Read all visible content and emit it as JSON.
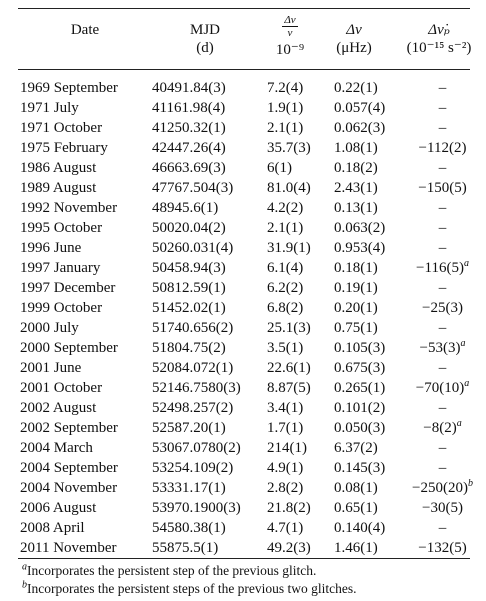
{
  "header": {
    "date": "Date",
    "mjd": "MJD",
    "mjd_unit": "(d)",
    "rel_num": "Δν",
    "rel_den": "ν",
    "rel_unit": "10⁻⁹",
    "dnu": "Δν",
    "dnu_unit": "(μHz)",
    "dnud": "Δν̇ₚ",
    "dnud_unit": "(10⁻¹⁵ s⁻²)"
  },
  "rows": [
    {
      "date": "1969 September",
      "mjd": "40491.84(3)",
      "rel": "7.2(4)",
      "dnu": "0.22(1)",
      "dnud": "–"
    },
    {
      "date": "1971 July",
      "mjd": "41161.98(4)",
      "rel": "1.9(1)",
      "dnu": "0.057(4)",
      "dnud": "–"
    },
    {
      "date": "1971 October",
      "mjd": "41250.32(1)",
      "rel": "2.1(1)",
      "dnu": "0.062(3)",
      "dnud": "–"
    },
    {
      "date": "1975 February",
      "mjd": "42447.26(4)",
      "rel": "35.7(3)",
      "dnu": "1.08(1)",
      "dnud": "−112(2)"
    },
    {
      "date": "1986 August",
      "mjd": "46663.69(3)",
      "rel": "6(1)",
      "dnu": "0.18(2)",
      "dnud": "–"
    },
    {
      "date": "1989 August",
      "mjd": "47767.504(3)",
      "rel": "81.0(4)",
      "dnu": "2.43(1)",
      "dnud": "−150(5)"
    },
    {
      "date": "1992 November",
      "mjd": "48945.6(1)",
      "rel": "4.2(2)",
      "dnu": "0.13(1)",
      "dnud": "–"
    },
    {
      "date": "1995 October",
      "mjd": "50020.04(2)",
      "rel": "2.1(1)",
      "dnu": "0.063(2)",
      "dnud": "–"
    },
    {
      "date": "1996 June",
      "mjd": "50260.031(4)",
      "rel": "31.9(1)",
      "dnu": "0.953(4)",
      "dnud": "–"
    },
    {
      "date": "1997 January",
      "mjd": "50458.94(3)",
      "rel": "6.1(4)",
      "dnu": "0.18(1)",
      "dnud": "−116(5)",
      "dnud_mark": "a"
    },
    {
      "date": "1997 December",
      "mjd": "50812.59(1)",
      "rel": "6.2(2)",
      "dnu": "0.19(1)",
      "dnud": "–"
    },
    {
      "date": "1999 October",
      "mjd": "51452.02(1)",
      "rel": "6.8(2)",
      "dnu": "0.20(1)",
      "dnud": "−25(3)"
    },
    {
      "date": "2000 July",
      "mjd": "51740.656(2)",
      "rel": "25.1(3)",
      "dnu": "0.75(1)",
      "dnud": "–"
    },
    {
      "date": "2000 September",
      "mjd": "51804.75(2)",
      "rel": "3.5(1)",
      "dnu": "0.105(3)",
      "dnud": "−53(3)",
      "dnud_mark": "a"
    },
    {
      "date": "2001 June",
      "mjd": "52084.072(1)",
      "rel": "22.6(1)",
      "dnu": "0.675(3)",
      "dnud": "–"
    },
    {
      "date": "2001 October",
      "mjd": "52146.7580(3)",
      "rel": "8.87(5)",
      "dnu": "0.265(1)",
      "dnud": "−70(10)",
      "dnud_mark": "a"
    },
    {
      "date": "2002 August",
      "mjd": "52498.257(2)",
      "rel": "3.4(1)",
      "dnu": "0.101(2)",
      "dnud": "–"
    },
    {
      "date": "2002 September",
      "mjd": "52587.20(1)",
      "rel": "1.7(1)",
      "dnu": "0.050(3)",
      "dnud": "−8(2)",
      "dnud_mark": "a"
    },
    {
      "date": "2004 March",
      "mjd": "53067.0780(2)",
      "rel": "214(1)",
      "dnu": "6.37(2)",
      "dnud": "–"
    },
    {
      "date": "2004 September",
      "mjd": "53254.109(2)",
      "rel": "4.9(1)",
      "dnu": "0.145(3)",
      "dnud": "–"
    },
    {
      "date": "2004 November",
      "mjd": "53331.17(1)",
      "rel": "2.8(2)",
      "dnu": "0.08(1)",
      "dnud": "−250(20)",
      "dnud_mark": "b"
    },
    {
      "date": "2006 August",
      "mjd": "53970.1900(3)",
      "rel": "21.8(2)",
      "dnu": "0.65(1)",
      "dnud": "−30(5)"
    },
    {
      "date": "2008 April",
      "mjd": "54580.38(1)",
      "rel": "4.7(1)",
      "dnu": "0.140(4)",
      "dnud": "–"
    },
    {
      "date": "2011 November",
      "mjd": "55875.5(1)",
      "rel": "49.2(3)",
      "dnu": "1.46(1)",
      "dnud": "−132(5)"
    }
  ],
  "notes": [
    {
      "mark": "a",
      "text": "Incorporates the persistent step of the previous glitch."
    },
    {
      "mark": "b",
      "text": "Incorporates the persistent steps of the previous two glitches."
    }
  ]
}
